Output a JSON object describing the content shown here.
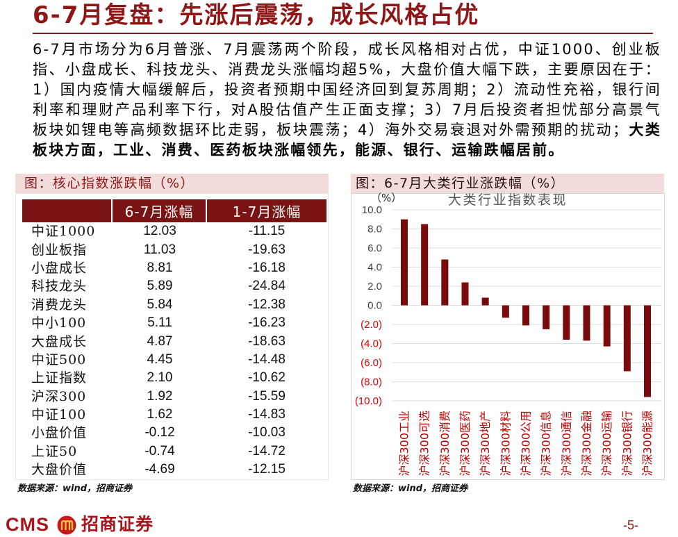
{
  "colors": {
    "accent": "#8E1616",
    "caption_bg": "#F2DCDB",
    "table_header_bg": "#7A1313",
    "bar": "#7A0B0B",
    "positive_label": "#404040",
    "negative_label": "#E00000",
    "category_label": "#C00000",
    "logo": "#A8161C"
  },
  "header": {
    "title": "6-7月复盘：先涨后震荡，成长风格占优"
  },
  "summary": {
    "text": "6-7月市场分为6月普涨、7月震荡两个阶段，成长风格相对占优，中证1000、创业板指、小盘成长、科技龙头、消费龙头涨幅均超5%，大盘价值大幅下跌，主要原因在于：1）国内疫情大幅缓解后，投资者预期中国经济回到复苏周期；2）流动性充裕，银行间利率和理财产品利率下行，对A股估值产生正面支撑；3）7月后投资者担忧部分高景气板块如锂电等高频数据环比走弱，板块震荡；4）海外交易衰退对外需预期的扰动；",
    "highlight": "大类板块方面，工业、消费、医药板块涨幅领先，能源、银行、运输跌幅居前。"
  },
  "left_figure": {
    "caption": "图：核心指数涨跌幅（%）",
    "source": "数据来源：wind，招商证券"
  },
  "right_figure": {
    "caption": "图：6-7月大类行业涨跌幅（%）",
    "source": "数据来源：wind，招商证券"
  },
  "footer": {
    "brand": "CMS",
    "logo_icon": "cms-logo-icon",
    "brand_cn": "招商证券",
    "page_number": "-5-"
  },
  "chart_data": [
    {
      "type": "table",
      "columns": [
        "6-7月涨幅",
        "1-7月涨幅"
      ],
      "rows": [
        {
          "name": "中证1000",
          "jun_jul": 12.03,
          "jan_jul": -11.15
        },
        {
          "name": "创业板指",
          "jun_jul": 11.03,
          "jan_jul": -19.63
        },
        {
          "name": "小盘成长",
          "jun_jul": 8.81,
          "jan_jul": -16.18
        },
        {
          "name": "科技龙头",
          "jun_jul": 5.89,
          "jan_jul": -24.84
        },
        {
          "name": "消费龙头",
          "jun_jul": 5.84,
          "jan_jul": -12.38
        },
        {
          "name": "中小100",
          "jun_jul": 5.11,
          "jan_jul": -16.23
        },
        {
          "name": "大盘成长",
          "jun_jul": 4.87,
          "jan_jul": -18.63
        },
        {
          "name": "中证500",
          "jun_jul": 4.45,
          "jan_jul": -14.48
        },
        {
          "name": "上证指数",
          "jun_jul": 2.1,
          "jan_jul": -10.62
        },
        {
          "name": "沪深300",
          "jun_jul": 1.92,
          "jan_jul": -15.59
        },
        {
          "name": "中证100",
          "jun_jul": 1.62,
          "jan_jul": -14.83
        },
        {
          "name": "小盘价值",
          "jun_jul": -0.12,
          "jan_jul": -10.03
        },
        {
          "name": "上证50",
          "jun_jul": -0.74,
          "jan_jul": -14.72
        },
        {
          "name": "大盘价值",
          "jun_jul": -4.69,
          "jan_jul": -12.15
        }
      ]
    },
    {
      "type": "bar",
      "title": "大类行业指数表现",
      "ylabel": "（%）",
      "categories": [
        "沪深300工业",
        "沪深300可选",
        "沪深300消费",
        "沪深300医药",
        "沪深300地产",
        "沪深300材料",
        "沪深300公用",
        "沪深300信息",
        "沪深300通信",
        "沪深300金融",
        "沪深300运输",
        "沪深300银行",
        "沪深300能源"
      ],
      "values": [
        9.0,
        8.5,
        4.8,
        2.4,
        0.8,
        -1.3,
        -2.1,
        -2.5,
        -3.6,
        -3.7,
        -4.3,
        -6.9,
        -9.6
      ],
      "ylim": [
        -10,
        10
      ],
      "yticks": [
        10,
        8,
        6,
        4,
        2,
        0,
        -2,
        -4,
        -6,
        -8,
        -10
      ],
      "ytick_labels": [
        "10.0",
        "8.0",
        "6.0",
        "4.0",
        "2.0",
        "0.0",
        "(2.0)",
        "(4.0)",
        "(6.0)",
        "(8.0)",
        "(10.0)"
      ],
      "grid": true
    }
  ]
}
